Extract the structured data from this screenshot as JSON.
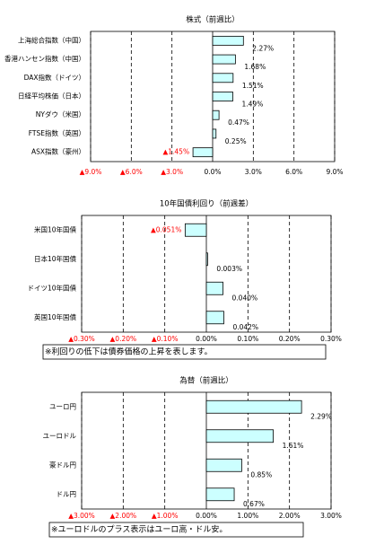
{
  "chart_data": [
    {
      "type": "bar",
      "orientation": "horizontal",
      "title": "株式（前週比）",
      "color": "#ccffff",
      "grid": true,
      "categories": [
        "上海総合指数（中国）",
        "香港ハンセン指数（中国）",
        "DAX指数（ドイツ）",
        "日経平均株価（日本）",
        "NYダウ（米国）",
        "FTSE指数（英国）",
        "ASX指数（豪州）"
      ],
      "values": [
        2.27,
        1.68,
        1.51,
        1.49,
        0.47,
        0.25,
        -1.45
      ],
      "value_labels": [
        "2.27%",
        "1.68%",
        "1.51%",
        "1.49%",
        "0.47%",
        "0.25%",
        "▲1.45%"
      ],
      "xlim": [
        -9,
        9
      ],
      "xticks": [
        {
          "value": -9,
          "label": "▲9.0%"
        },
        {
          "value": -6,
          "label": "▲6.0%"
        },
        {
          "value": -3,
          "label": "▲3.0%"
        },
        {
          "value": 0,
          "label": "0.0%"
        },
        {
          "value": 3,
          "label": "3.0%"
        },
        {
          "value": 6,
          "label": "6.0%"
        },
        {
          "value": 9,
          "label": "9.0%"
        }
      ]
    },
    {
      "type": "bar",
      "orientation": "horizontal",
      "title": "10年国債利回り（前週差）",
      "color": "#ccffff",
      "grid": true,
      "categories": [
        "米国10年国債",
        "日本10年国債",
        "ドイツ10年国債",
        "英国10年国債"
      ],
      "values": [
        -0.051,
        0.003,
        0.04,
        0.042
      ],
      "value_labels": [
        "▲0.051%",
        "0.003%",
        "0.040%",
        "0.042%"
      ],
      "xlim": [
        -0.3,
        0.3
      ],
      "xticks": [
        {
          "value": -0.3,
          "label": "▲0.30%"
        },
        {
          "value": -0.2,
          "label": "▲0.20%"
        },
        {
          "value": -0.1,
          "label": "▲0.10%"
        },
        {
          "value": 0,
          "label": "0.00%"
        },
        {
          "value": 0.1,
          "label": "0.10%"
        },
        {
          "value": 0.2,
          "label": "0.20%"
        },
        {
          "value": 0.3,
          "label": "0.30%"
        }
      ],
      "note": "※利回りの低下は債券価格の上昇を表します。"
    },
    {
      "type": "bar",
      "orientation": "horizontal",
      "title": "為替（前週比）",
      "color": "#ccffff",
      "grid": true,
      "categories": [
        "ユーロ円",
        "ユーロドル",
        "豪ドル円",
        "ドル円"
      ],
      "values": [
        2.29,
        1.61,
        0.85,
        0.67
      ],
      "value_labels": [
        "2.29%",
        "1.61%",
        "0.85%",
        "0.67%"
      ],
      "xlim": [
        -3,
        3
      ],
      "xticks": [
        {
          "value": -3,
          "label": "▲3.00%"
        },
        {
          "value": -2,
          "label": "▲2.00%"
        },
        {
          "value": -1,
          "label": "▲1.00%"
        },
        {
          "value": 0,
          "label": "0.00%"
        },
        {
          "value": 1,
          "label": "1.00%"
        },
        {
          "value": 2,
          "label": "2.00%"
        },
        {
          "value": 3,
          "label": "3.00%"
        }
      ],
      "note": "※ユーロドルのプラス表示はユーロ高・ドル安。"
    }
  ]
}
